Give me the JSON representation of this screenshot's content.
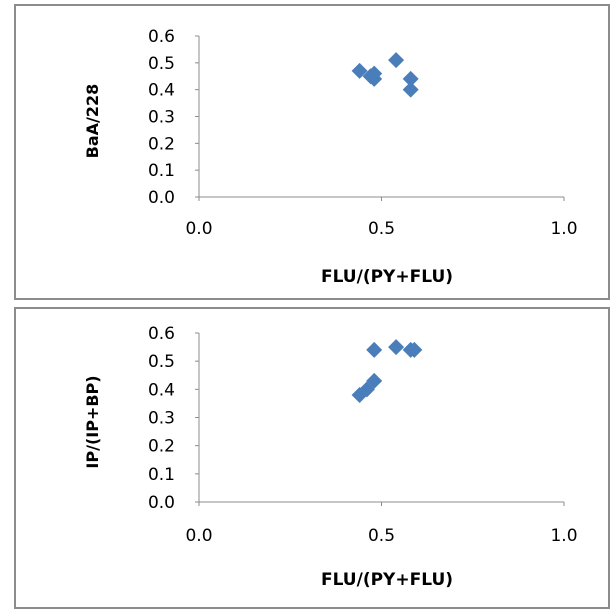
{
  "colors": {
    "marker": "#4a7ebb",
    "axis": "#8c8c8c",
    "border": "#8c8c8c"
  },
  "chart_data": [
    {
      "type": "scatter",
      "title": "",
      "xlabel": "FLU/(PY+FLU)",
      "ylabel": "BaA/228",
      "xlim": [
        0.0,
        1.0
      ],
      "ylim": [
        0.0,
        0.6
      ],
      "x_ticks": [
        "0.0",
        "0.5",
        "1.0"
      ],
      "y_ticks": [
        "0.0",
        "0.1",
        "0.2",
        "0.3",
        "0.4",
        "0.5",
        "0.6"
      ],
      "grid": false,
      "legend": "none",
      "marker": "diamond",
      "points": [
        {
          "x": 0.44,
          "y": 0.47
        },
        {
          "x": 0.48,
          "y": 0.46
        },
        {
          "x": 0.47,
          "y": 0.45
        },
        {
          "x": 0.48,
          "y": 0.44
        },
        {
          "x": 0.54,
          "y": 0.51
        },
        {
          "x": 0.58,
          "y": 0.44
        },
        {
          "x": 0.58,
          "y": 0.4
        }
      ]
    },
    {
      "type": "scatter",
      "title": "",
      "xlabel": "FLU/(PY+FLU)",
      "ylabel": "IP/(IP+BP)",
      "xlim": [
        0.0,
        1.0
      ],
      "ylim": [
        0.0,
        0.6
      ],
      "x_ticks": [
        "0.0",
        "0.5",
        "1.0"
      ],
      "y_ticks": [
        "0.0",
        "0.1",
        "0.2",
        "0.3",
        "0.4",
        "0.5",
        "0.6"
      ],
      "grid": false,
      "legend": "none",
      "marker": "diamond",
      "points": [
        {
          "x": 0.44,
          "y": 0.38
        },
        {
          "x": 0.46,
          "y": 0.4
        },
        {
          "x": 0.48,
          "y": 0.43
        },
        {
          "x": 0.48,
          "y": 0.54
        },
        {
          "x": 0.54,
          "y": 0.55
        },
        {
          "x": 0.58,
          "y": 0.54
        },
        {
          "x": 0.59,
          "y": 0.54
        }
      ]
    }
  ]
}
